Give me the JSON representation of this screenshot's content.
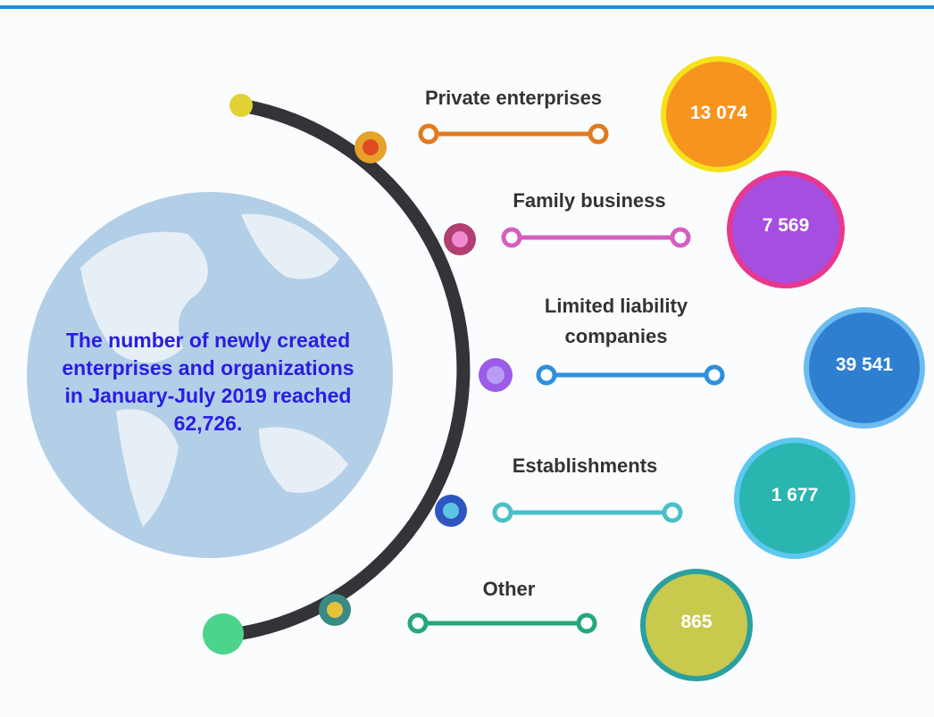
{
  "summary": "The number of newly created enterprises and organizations in January-July 2019 reached 62,726.",
  "items": [
    {
      "label": "Private enterprises",
      "value": "13 074"
    },
    {
      "label": "Family business",
      "value": "7 569"
    },
    {
      "label": "Limited liability companies",
      "value": "39 541"
    },
    {
      "label": "Establishments",
      "value": "1 677"
    },
    {
      "label": "Other",
      "value": "865"
    }
  ]
}
